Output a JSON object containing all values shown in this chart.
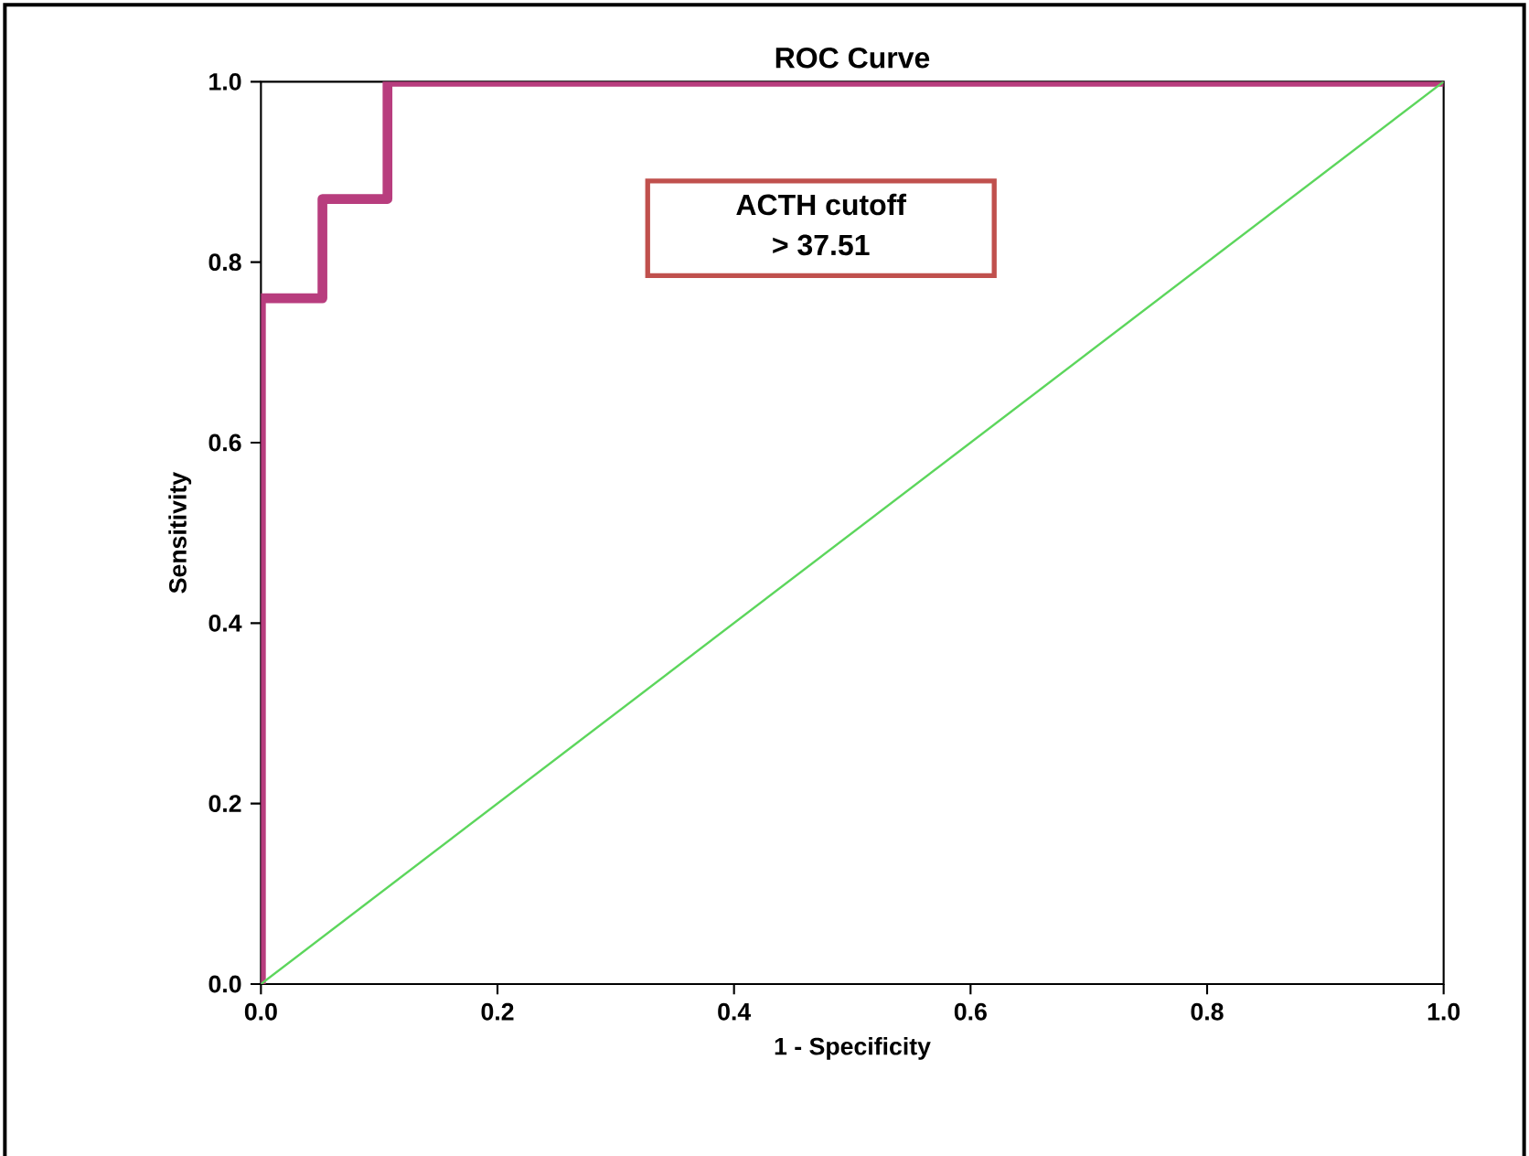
{
  "chart_data": {
    "type": "line",
    "title": "ROC Curve",
    "xlabel": "1 - Specificity",
    "ylabel": "Sensitivity",
    "series": [
      {
        "color": "#b83d7e",
        "x": [
          0,
          0,
          0.052,
          0.052,
          0.107,
          0.107,
          1
        ],
        "values": [
          0,
          0.76,
          0.76,
          0.87,
          0.87,
          1,
          1
        ]
      },
      {
        "color": "#5cd65c",
        "x": [
          0,
          1
        ],
        "values": [
          0,
          1
        ]
      }
    ],
    "annotations": [
      "ACTH cutoff",
      "> 37.51"
    ],
    "xlim": [
      0,
      1
    ],
    "ylim": [
      0,
      1
    ],
    "xticks": [
      {
        "value": 0,
        "label": "0.0"
      },
      {
        "value": 0.2,
        "label": "0.2"
      },
      {
        "value": 0.4,
        "label": "0.4"
      },
      {
        "value": 0.6,
        "label": "0.6"
      },
      {
        "value": 0.8,
        "label": "0.8"
      },
      {
        "value": 1,
        "label": "1.0"
      }
    ],
    "yticks": [
      {
        "value": 0,
        "label": "0.0"
      },
      {
        "value": 0.2,
        "label": "0.2"
      },
      {
        "value": 0.4,
        "label": "0.4"
      },
      {
        "value": 0.6,
        "label": "0.6"
      },
      {
        "value": 0.8,
        "label": "0.8"
      },
      {
        "value": 1,
        "label": "1.0"
      }
    ],
    "grid": false,
    "marker": "none",
    "line_style": "solid"
  }
}
